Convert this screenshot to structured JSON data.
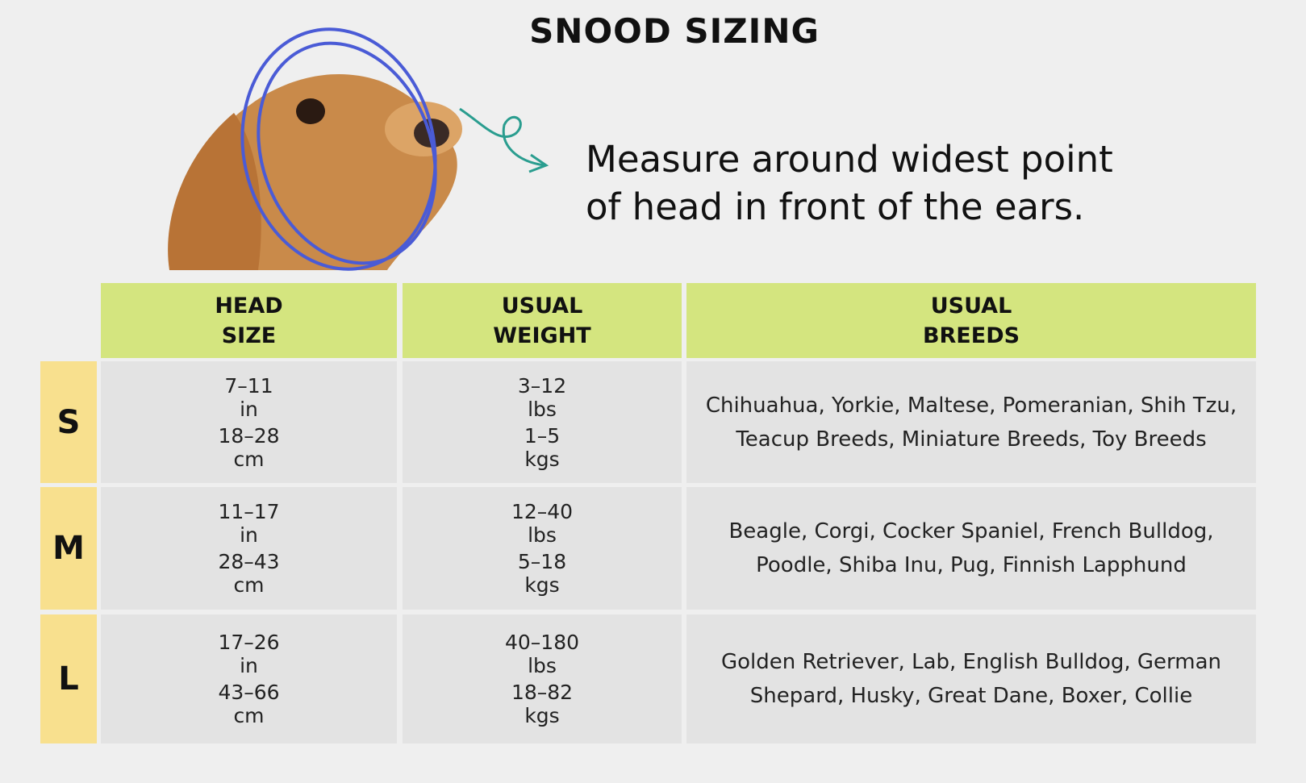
{
  "header": {
    "title": "SNOOD SIZING",
    "instruction": [
      "Measure around widest point",
      "of head in front of the ears."
    ]
  },
  "table": {
    "headers": [
      [
        "HEAD",
        "SIZE"
      ],
      [
        "USUAL",
        "WEIGHT"
      ],
      [
        "USUAL",
        "BREEDS"
      ]
    ],
    "rows": [
      {
        "size": "S",
        "head": [
          "7–11",
          "in",
          "18–28",
          "cm"
        ],
        "weight": [
          "3–12",
          "lbs",
          "1–5",
          "kgs"
        ],
        "breeds": [
          "Chihuahua, Yorkie, Maltese, Pomeranian, Shih Tzu,",
          "Teacup Breeds, Miniature Breeds, Toy Breeds"
        ]
      },
      {
        "size": "M",
        "head": [
          "11–17",
          "in",
          "28–43",
          "cm"
        ],
        "weight": [
          "12–40",
          "lbs",
          "5–18",
          "kgs"
        ],
        "breeds": [
          "Beagle, Corgi, Cocker Spaniel, French Bulldog,",
          "Poodle, Shiba Inu, Pug, Finnish Lapphund"
        ]
      },
      {
        "size": "L",
        "head": [
          "17–26",
          "in",
          "43–66",
          "cm"
        ],
        "weight": [
          "40–180",
          "lbs",
          "18–82",
          "kgs"
        ],
        "breeds": [
          "Golden Retriever, Lab, English Bulldog, German",
          "Shepard, Husky, Great Dane, Boxer, Collie"
        ]
      }
    ]
  }
}
